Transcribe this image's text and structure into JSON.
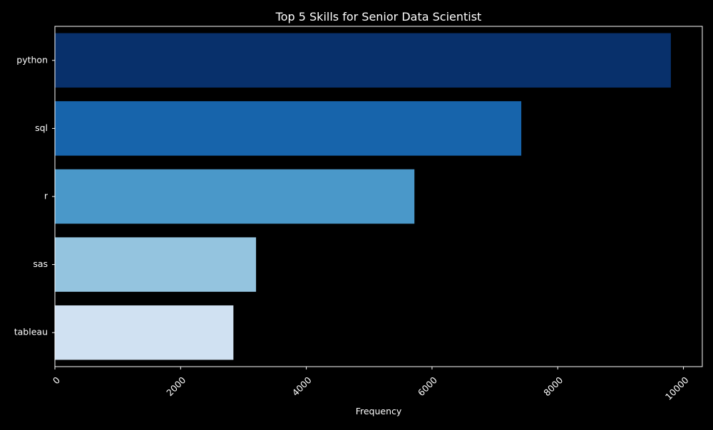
{
  "chart_data": {
    "type": "bar",
    "orientation": "horizontal",
    "title": "Top 5 Skills for Senior Data Scientist",
    "xlabel": "Frequency",
    "ylabel": "",
    "categories": [
      "python",
      "sql",
      "r",
      "sas",
      "tableau"
    ],
    "values": [
      9800,
      7420,
      5720,
      3200,
      2840
    ],
    "colors": [
      "#08306b",
      "#1764ab",
      "#4a98c9",
      "#94c4df",
      "#d0e1f2"
    ],
    "xlim": [
      0,
      10300
    ],
    "xticks": [
      0,
      2000,
      4000,
      6000,
      8000,
      10000
    ],
    "xtick_labels": [
      "0",
      "2000",
      "4000",
      "6000",
      "8000",
      "10000"
    ],
    "xtick_rotation": 45,
    "grid": false,
    "legend": "none",
    "background_color": "#000000",
    "text_color": "#ffffff"
  }
}
